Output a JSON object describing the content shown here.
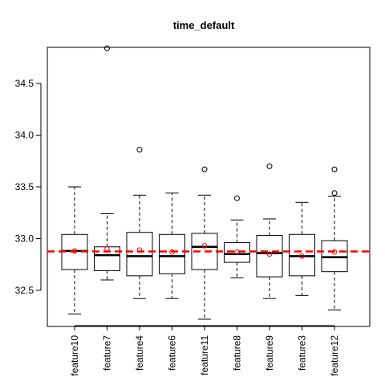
{
  "chart_data": {
    "type": "boxplot",
    "title": "time_default",
    "xlabel": "",
    "ylabel": "",
    "ylim": [
      32.15,
      34.85
    ],
    "yticks": [
      32.5,
      33.0,
      33.5,
      34.0,
      34.5
    ],
    "ytick_labels": [
      "32.5",
      "33.0",
      "33.5",
      "34.0",
      "34.5"
    ],
    "reference_line": {
      "value": 32.875,
      "color": "#ff0000",
      "style": "dashed"
    },
    "grid": false,
    "colors": {
      "box": "#000000",
      "mean_marker": "#ff0000",
      "outlier": "#000000",
      "reference": "#ff0000"
    },
    "categories": [
      "feature10",
      "feature7",
      "feature4",
      "feature6",
      "feature11",
      "feature8",
      "feature9",
      "feature3",
      "feature12"
    ],
    "boxes": [
      {
        "name": "feature10",
        "whisker_low": 32.27,
        "q1": 32.7,
        "median": 32.88,
        "q3": 33.04,
        "whisker_high": 33.5,
        "mean": 32.88,
        "outliers": []
      },
      {
        "name": "feature7",
        "whisker_low": 32.6,
        "q1": 32.69,
        "median": 32.84,
        "q3": 32.92,
        "whisker_high": 33.24,
        "mean": 32.9,
        "outliers": [
          34.84
        ]
      },
      {
        "name": "feature4",
        "whisker_low": 32.42,
        "q1": 32.64,
        "median": 32.83,
        "q3": 33.06,
        "whisker_high": 33.42,
        "mean": 32.89,
        "outliers": [
          33.86
        ]
      },
      {
        "name": "feature6",
        "whisker_low": 32.42,
        "q1": 32.66,
        "median": 32.83,
        "q3": 33.04,
        "whisker_high": 33.44,
        "mean": 32.87,
        "outliers": []
      },
      {
        "name": "feature11",
        "whisker_low": 32.22,
        "q1": 32.7,
        "median": 32.92,
        "q3": 33.05,
        "whisker_high": 33.42,
        "mean": 32.93,
        "outliers": [
          33.67
        ]
      },
      {
        "name": "feature8",
        "whisker_low": 32.62,
        "q1": 32.77,
        "median": 32.85,
        "q3": 32.96,
        "whisker_high": 33.18,
        "mean": 32.87,
        "outliers": [
          33.39
        ]
      },
      {
        "name": "feature9",
        "whisker_low": 32.42,
        "q1": 32.63,
        "median": 32.86,
        "q3": 33.03,
        "whisker_high": 33.19,
        "mean": 32.85,
        "outliers": [
          33.7
        ]
      },
      {
        "name": "feature3",
        "whisker_low": 32.45,
        "q1": 32.64,
        "median": 32.83,
        "q3": 33.04,
        "whisker_high": 33.35,
        "mean": 32.83,
        "outliers": []
      },
      {
        "name": "feature12",
        "whisker_low": 32.31,
        "q1": 32.68,
        "median": 32.82,
        "q3": 32.98,
        "whisker_high": 33.41,
        "mean": 32.87,
        "outliers": [
          33.44,
          33.67
        ]
      }
    ]
  }
}
